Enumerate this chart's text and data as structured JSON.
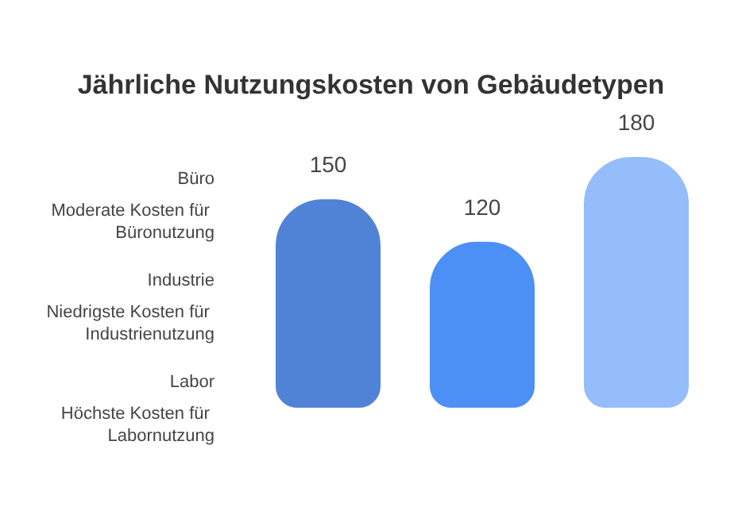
{
  "chart_data": {
    "type": "bar",
    "title": "Jährliche Nutzungskosten von Gebäudetypen",
    "categories": [
      null,
      null,
      null
    ],
    "values": [
      150,
      120,
      180
    ],
    "colors": [
      "#5083d5",
      "#4d90f5",
      "#95bdfc"
    ],
    "data_labels": true,
    "annotations": [
      "Büro",
      "Moderate Kosten für Büronutzung",
      "Industrie",
      "Niedrigste Kosten für Industrienutzung",
      "Labor",
      "Höchste Kosten für Labornutzung"
    ]
  }
}
